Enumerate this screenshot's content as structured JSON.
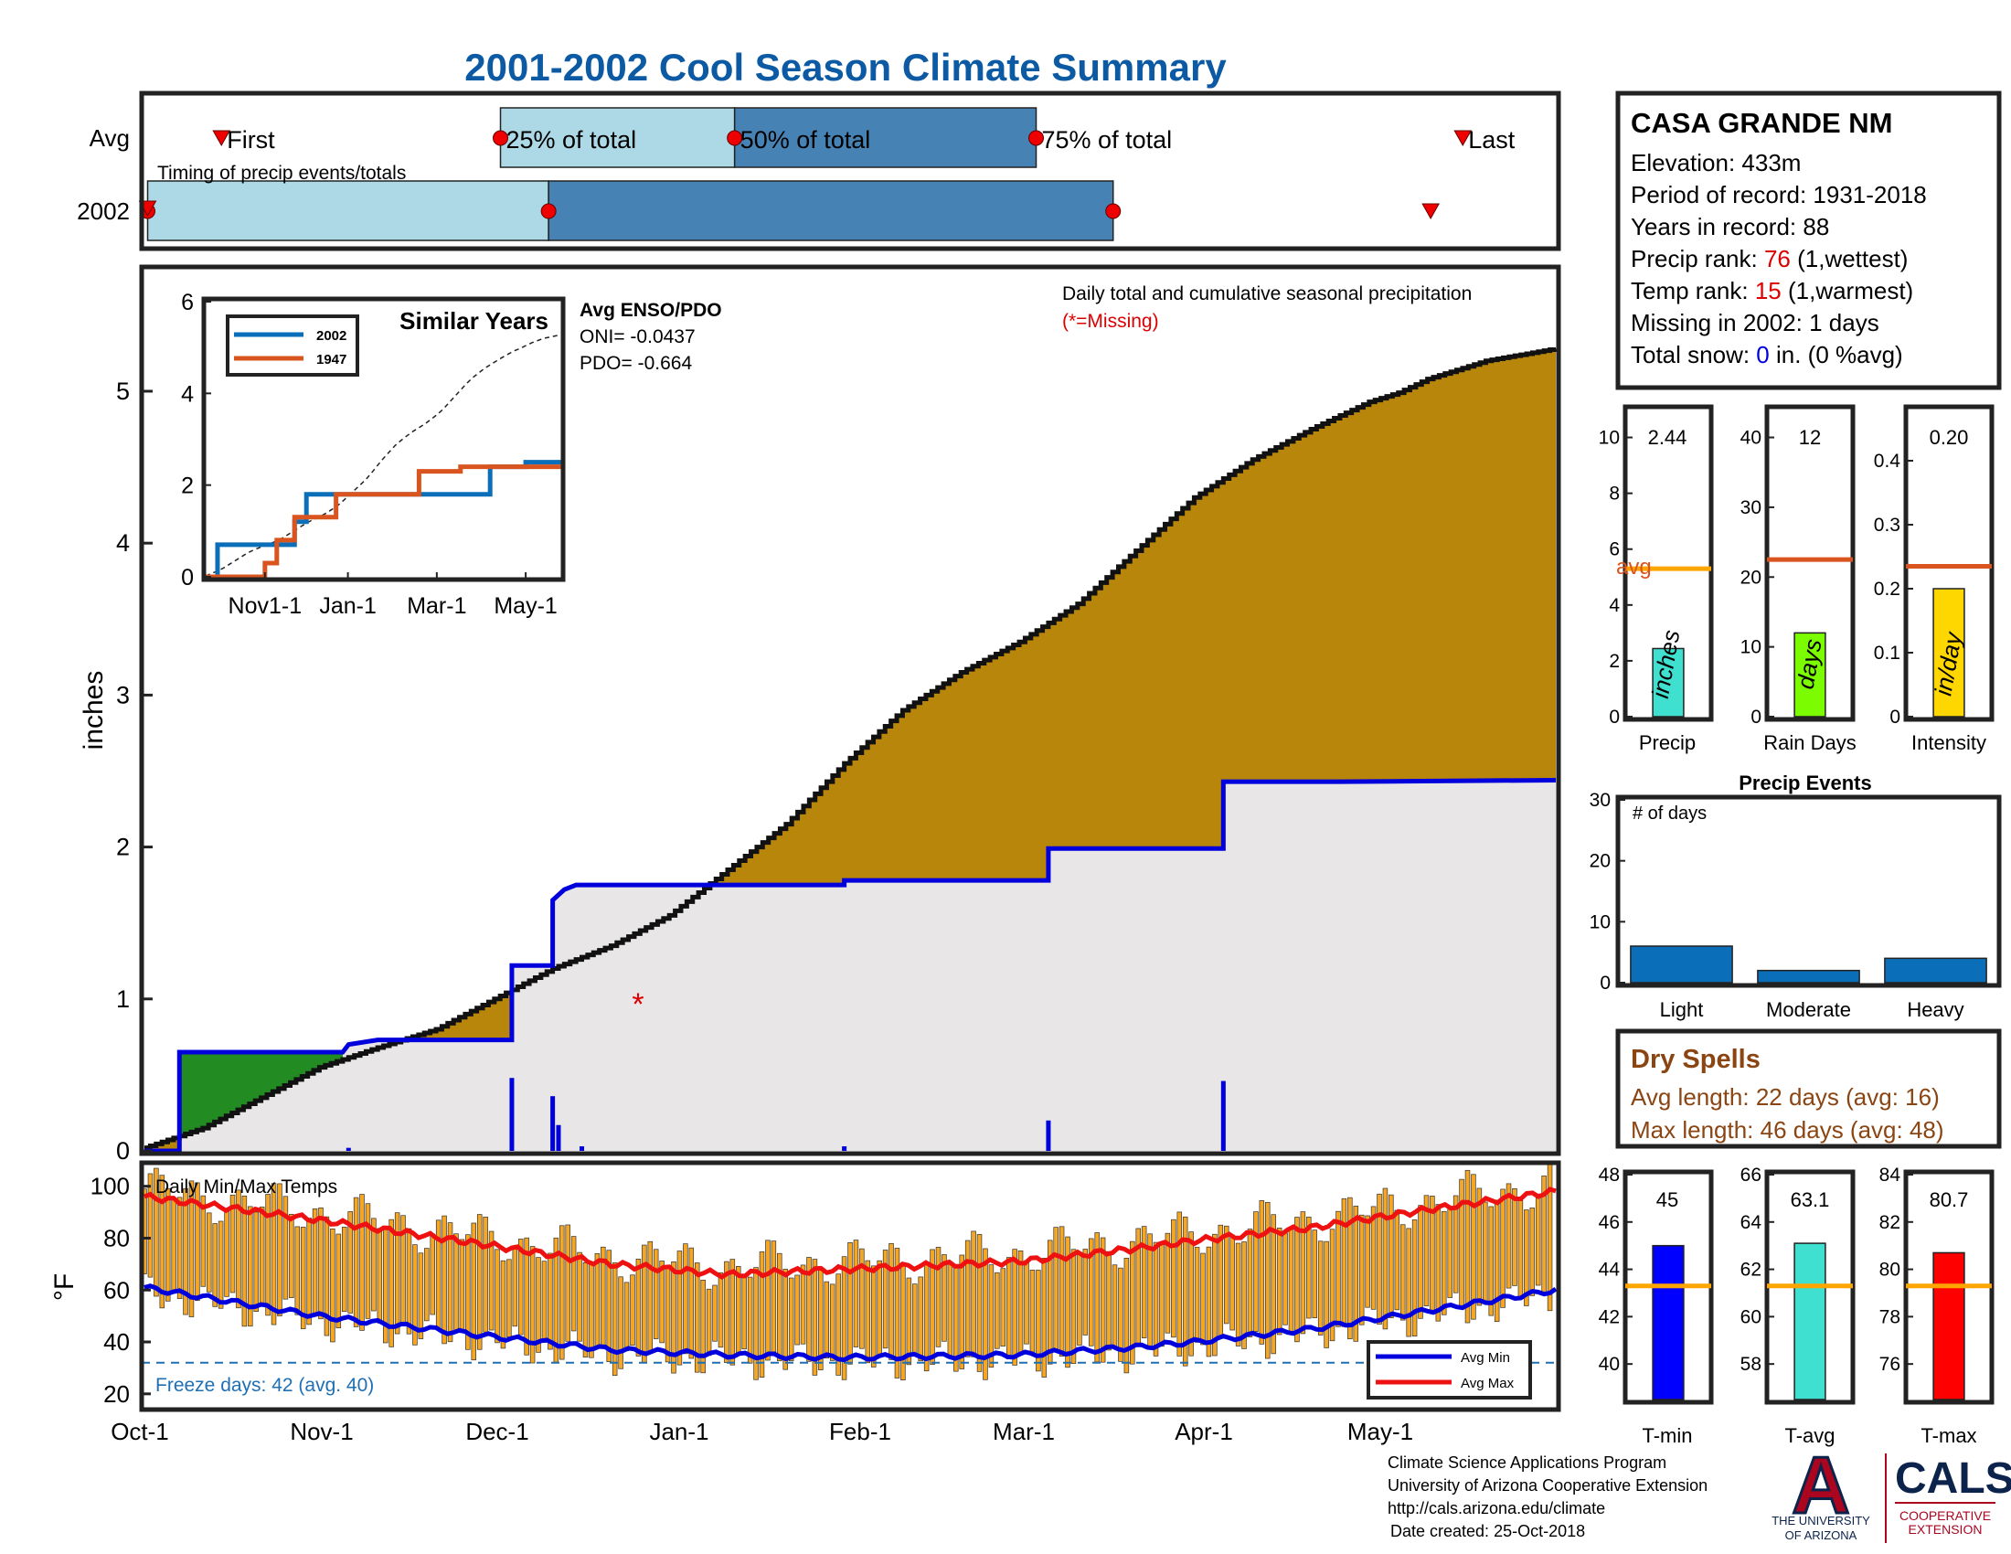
{
  "title": "2001-2002 Cool Season Climate Summary",
  "colors": {
    "title": "#0b5aa3",
    "cum_fill": "#b8860b",
    "avg_line": "#0000dd",
    "below_fill": "#e8e6e6",
    "early_fill": "#228b22",
    "light_blue": "#add8e6",
    "steel_blue": "#4682b4",
    "red": "#dd0000",
    "orange_line": "#d9541e",
    "bar_blue": "#0b6eb8",
    "temp_bar": "#f5a623",
    "tmin": "#0000ff",
    "tavg": "#40e0d0",
    "tmax": "#ff0000",
    "avg_temp_line": "#ffa500",
    "dry": "#8b4513"
  },
  "timing": {
    "row_avg_label": "Avg",
    "row_year_label": "2002",
    "caption": "Timing of precip events/totals",
    "first_label": "First",
    "p25_label": "25% of total",
    "p50_label": "50% of total",
    "p75_label": "75% of total",
    "last_label": "Last",
    "avg": {
      "first_day": 24,
      "p25_day": 111,
      "p50_day": 184,
      "p75_day": 278,
      "last_day": 411
    },
    "year": {
      "first_day": 1,
      "p25_day": 126,
      "p50_day": 302,
      "last_day": 401
    }
  },
  "station": {
    "name": "CASA GRANDE NM",
    "elevation_label": "Elevation: 433m",
    "period_label": "Period of record: 1931-2018",
    "years_label": "Years in record: 88",
    "precip_rank_prefix": "Precip rank: ",
    "precip_rank_value": "76",
    "precip_rank_suffix": " (1,wettest)",
    "temp_rank_prefix": "Temp rank: ",
    "temp_rank_value": "15",
    "temp_rank_suffix": " (1,warmest)",
    "missing_label": "Missing in 2002: 1 days",
    "snow_prefix": "Total snow: ",
    "snow_value": "0",
    "snow_suffix": " in. (0 %avg)"
  },
  "main_chart": {
    "ylabel": "inches",
    "legend_title": "Daily total and cumulative seasonal precipitation",
    "missing_note": "(*=Missing)",
    "missing_marker": "*",
    "yticks": [
      "0",
      "1",
      "2",
      "3",
      "4",
      "5"
    ]
  },
  "inset": {
    "title": "Similar Years",
    "legend": [
      "2002",
      "1947"
    ],
    "yticks": [
      "0",
      "2",
      "4",
      "6"
    ],
    "xticks": [
      "Nov1-1",
      "Jan-1",
      "Mar-1",
      "May-1"
    ],
    "enso_title": "Avg ENSO/PDO",
    "oni_label": "ONI= -0.0437",
    "pdo_label": "PDO= -0.664"
  },
  "temps": {
    "caption": "Daily Min/Max Temps",
    "ylabel": "°F",
    "yticks": [
      "20",
      "40",
      "60",
      "80",
      "100"
    ],
    "freeze_label": "Freeze days: 42 (avg. 40)",
    "legend_min": "Avg Min",
    "legend_max": "Avg Max"
  },
  "x_months": [
    "Oct-1",
    "Nov-1",
    "Dec-1",
    "Jan-1",
    "Feb-1",
    "Mar-1",
    "Apr-1",
    "May-1"
  ],
  "side_bars": {
    "precip": {
      "value_label": "2.44",
      "unit": "inches",
      "label": "Precip",
      "avg_label": "avg",
      "yticks": [
        "0",
        "2",
        "4",
        "6",
        "8",
        "10"
      ]
    },
    "rain_days": {
      "value_label": "12",
      "unit": "days",
      "label": "Rain Days",
      "yticks": [
        "0",
        "10",
        "20",
        "30",
        "40"
      ]
    },
    "intensity": {
      "value_label": "0.20",
      "unit": "in/day",
      "label": "Intensity",
      "yticks": [
        "0",
        "0.1",
        "0.2",
        "0.3",
        "0.4"
      ]
    }
  },
  "events": {
    "title": "Precip Events",
    "caption": "# of days",
    "yticks": [
      "0",
      "10",
      "20",
      "30"
    ],
    "categories": [
      "Light",
      "Moderate",
      "Heavy"
    ]
  },
  "dry_spells": {
    "title": "Dry Spells",
    "avg_line": "Avg length: 22 days (avg: 16)",
    "max_line": "Max length: 46 days (avg: 48)"
  },
  "temp_bars": {
    "tmin": {
      "value_label": "45",
      "label": "T-min",
      "yticks": [
        "40",
        "42",
        "44",
        "46",
        "48"
      ]
    },
    "tavg": {
      "value_label": "63.1",
      "label": "T-avg",
      "yticks": [
        "58",
        "60",
        "62",
        "64",
        "66"
      ]
    },
    "tmax": {
      "value_label": "80.7",
      "label": "T-max",
      "yticks": [
        "76",
        "78",
        "80",
        "82",
        "84"
      ]
    }
  },
  "footer": {
    "line1": "Climate Science Applications Program",
    "line2": "University of Arizona Cooperative Extension",
    "line3": "http://cals.arizona.edu/climate",
    "line4": "Date created: 25-Oct-2018",
    "ua_line1": "THE UNIVERSITY",
    "ua_line2": "OF ARIZONA",
    "ua_logo_letter": "A",
    "cals_text": "CALS",
    "cals_sub1": "COOPERATIVE",
    "cals_sub2": "EXTENSION"
  },
  "chart_data": [
    {
      "type": "area",
      "title": "Daily total and cumulative seasonal precipitation",
      "ylabel": "inches",
      "ylim": [
        0,
        5.8
      ],
      "x_axis": "days since Oct-1 (0-242)",
      "series": [
        {
          "name": "cumulative average",
          "x": [
            0,
            10,
            20,
            30,
            40,
            50,
            60,
            70,
            80,
            90,
            100,
            110,
            120,
            130,
            140,
            150,
            160,
            170,
            180,
            190,
            200,
            210,
            215,
            220,
            230,
            242
          ],
          "values": [
            0.02,
            0.15,
            0.35,
            0.55,
            0.68,
            0.8,
            1.0,
            1.2,
            1.35,
            1.55,
            1.85,
            2.15,
            2.55,
            2.9,
            3.15,
            3.35,
            3.6,
            3.95,
            4.3,
            4.55,
            4.75,
            4.93,
            4.99,
            5.08,
            5.2,
            5.28
          ]
        },
        {
          "name": "cumulative 2001-2002",
          "x": [
            0,
            6,
            6,
            34,
            35,
            40,
            60,
            63,
            63,
            70,
            70,
            72,
            74,
            120,
            120,
            155,
            155,
            185,
            185,
            205,
            242
          ],
          "values": [
            0,
            0,
            0.65,
            0.65,
            0.7,
            0.73,
            0.73,
            0.73,
            1.22,
            1.22,
            1.65,
            1.72,
            1.75,
            1.75,
            1.78,
            1.78,
            1.99,
            1.99,
            2.43,
            2.43,
            2.44
          ]
        }
      ],
      "daily_totals": {
        "x": [
          35,
          63,
          70,
          71,
          75,
          120,
          155,
          185
        ],
        "values": [
          0.02,
          0.48,
          0.36,
          0.17,
          0.03,
          0.03,
          0.2,
          0.46
        ]
      }
    },
    {
      "type": "line",
      "title": "Similar Years",
      "ylim": [
        0,
        6
      ],
      "series": [
        {
          "name": "2002",
          "x": [
            0,
            2,
            2,
            15,
            15,
            17,
            17,
            22,
            22,
            48,
            48,
            54,
            54,
            60
          ],
          "values": [
            0,
            0,
            0.7,
            0.7,
            1.2,
            1.2,
            1.8,
            1.8,
            1.8,
            1.8,
            2.4,
            2.4,
            2.5,
            2.5
          ]
        },
        {
          "name": "1947",
          "x": [
            0,
            10,
            10,
            12,
            12,
            15,
            15,
            22,
            22,
            36,
            36,
            43,
            43,
            60
          ],
          "values": [
            0,
            0,
            0.3,
            0.3,
            0.8,
            0.8,
            1.3,
            1.3,
            1.8,
            1.8,
            2.3,
            2.3,
            2.4,
            2.4
          ]
        }
      ]
    },
    {
      "type": "bar",
      "title": "Daily Min/Max Temps",
      "ylabel": "°F",
      "ylim": [
        15,
        108
      ],
      "avg_max": {
        "x": [
          0,
          30,
          60,
          80,
          100,
          120,
          150,
          170,
          180,
          200,
          220,
          242
        ],
        "values": [
          96,
          87,
          77,
          70,
          66,
          68,
          71,
          76,
          79,
          84,
          91,
          98
        ]
      },
      "avg_min": {
        "x": [
          0,
          30,
          60,
          80,
          100,
          120,
          150,
          170,
          180,
          200,
          220,
          242
        ],
        "values": [
          61,
          50,
          42,
          37,
          35,
          34,
          35,
          38,
          40,
          45,
          52,
          60
        ]
      },
      "freeze_line": 32
    },
    {
      "type": "bar",
      "title": "Precip",
      "categories": [
        "Precip"
      ],
      "values": [
        2.44
      ],
      "average": 5.3,
      "ylim": [
        0,
        11
      ]
    },
    {
      "type": "bar",
      "title": "Rain Days",
      "categories": [
        "Rain Days"
      ],
      "values": [
        12
      ],
      "average": 22.5,
      "ylim": [
        0,
        44
      ]
    },
    {
      "type": "bar",
      "title": "Intensity",
      "categories": [
        "Intensity"
      ],
      "values": [
        0.2
      ],
      "average": 0.235,
      "ylim": [
        0,
        0.48
      ]
    },
    {
      "type": "bar",
      "title": "Precip Events",
      "categories": [
        "Light",
        "Moderate",
        "Heavy"
      ],
      "values": [
        6,
        2,
        4
      ],
      "ylim": [
        0,
        30
      ]
    },
    {
      "type": "bar",
      "title": "T-min",
      "categories": [
        "T-min"
      ],
      "values": [
        45
      ],
      "average": 43.3,
      "ylim": [
        38.5,
        48
      ]
    },
    {
      "type": "bar",
      "title": "T-avg",
      "categories": [
        "T-avg"
      ],
      "values": [
        63.1
      ],
      "average": 61.3,
      "ylim": [
        56.5,
        66
      ]
    },
    {
      "type": "bar",
      "title": "T-max",
      "categories": [
        "T-max"
      ],
      "values": [
        80.7
      ],
      "average": 79.3,
      "ylim": [
        74.5,
        84
      ]
    }
  ]
}
